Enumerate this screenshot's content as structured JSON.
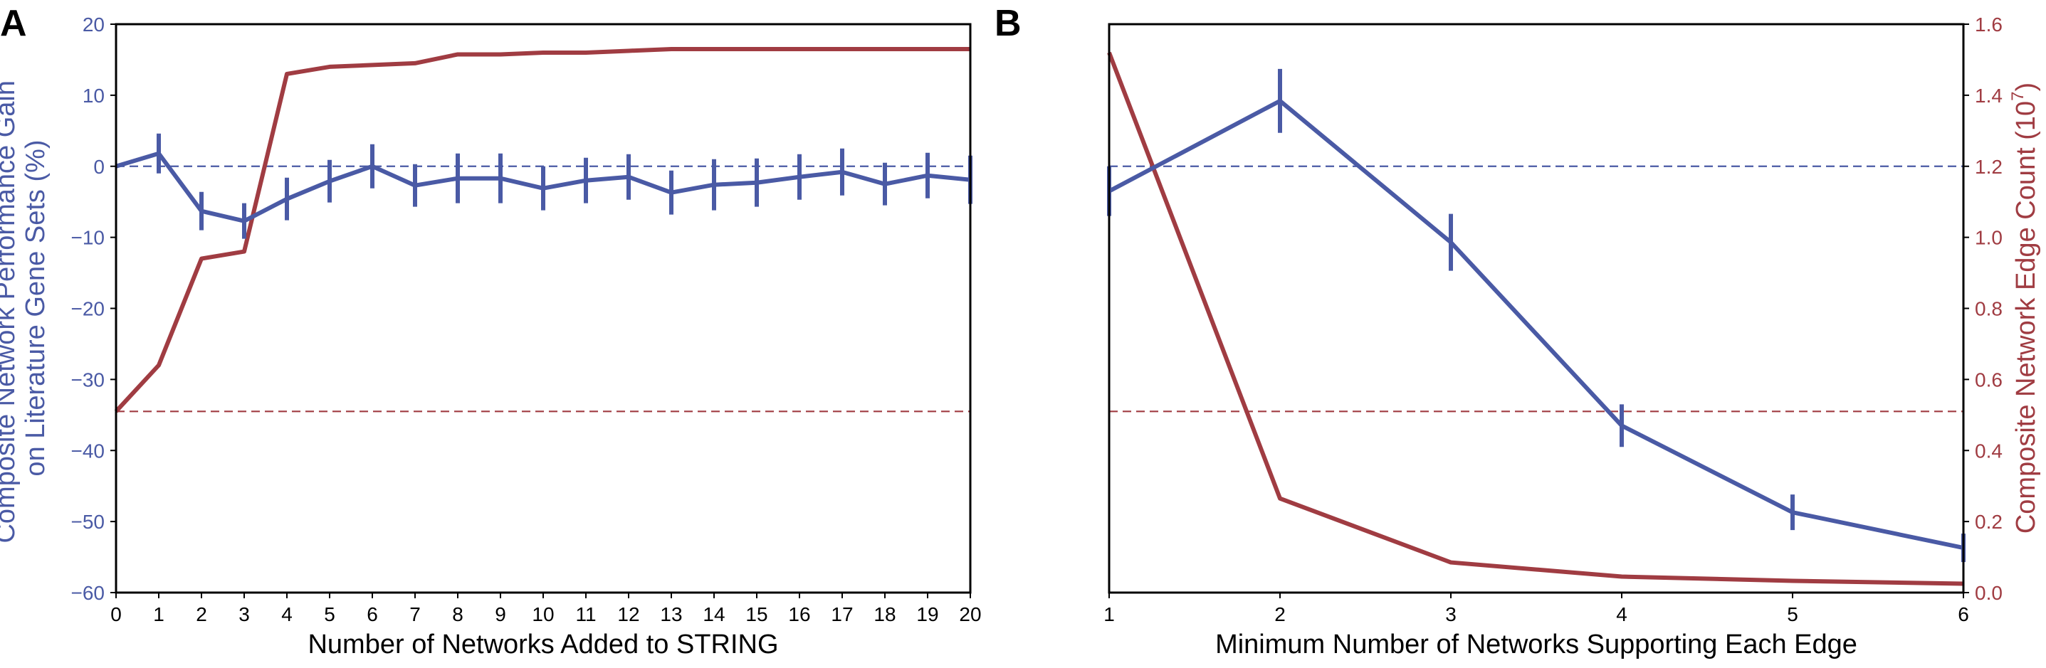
{
  "colors": {
    "blue": "#4a5aa5",
    "red": "#a03c42",
    "axis": "#000000"
  },
  "chart_data": [
    {
      "panel": "A",
      "type": "line",
      "xlabel": "Number of Networks Added to STRING",
      "ylabel_left": [
        "Composite Network Performance Gain",
        "on Literature Gene Sets (%)"
      ],
      "xlim": [
        0,
        20
      ],
      "ylim_left": [
        -60,
        20
      ],
      "ylim_right": [
        0,
        1.6
      ],
      "x_ticks": [
        0,
        1,
        2,
        3,
        4,
        5,
        6,
        7,
        8,
        9,
        10,
        11,
        12,
        13,
        14,
        15,
        16,
        17,
        18,
        19,
        20
      ],
      "x_tick_labels": [
        "0",
        "1",
        "2",
        "3",
        "4",
        "5",
        "6",
        "7",
        "8",
        "9",
        "10",
        "11",
        "12",
        "13",
        "14",
        "15",
        "16",
        "17",
        "18",
        "19",
        "20"
      ],
      "y_ticks_left": [
        -60,
        -50,
        -40,
        -30,
        -20,
        -10,
        0,
        10,
        20
      ],
      "y_tick_labels_left": [
        "−60",
        "−50",
        "−40",
        "−30",
        "−20",
        "−10",
        "0",
        "10",
        "20"
      ],
      "performance": {
        "x": [
          0,
          1,
          2,
          3,
          4,
          5,
          6,
          7,
          8,
          9,
          10,
          11,
          12,
          13,
          14,
          15,
          16,
          17,
          18,
          19,
          20
        ],
        "y": [
          0,
          1.8,
          -6.3,
          -7.7,
          -4.6,
          -2.1,
          0,
          -2.7,
          -1.7,
          -1.7,
          -3.1,
          -2.0,
          -1.5,
          -3.7,
          -2.6,
          -2.3,
          -1.5,
          -0.8,
          -2.5,
          -1.3,
          -1.9
        ],
        "err": [
          0,
          2.8,
          2.7,
          2.5,
          3.0,
          3.0,
          3.1,
          3.0,
          3.5,
          3.5,
          3.1,
          3.2,
          3.2,
          3.1,
          3.6,
          3.4,
          3.2,
          3.3,
          3.0,
          3.2,
          3.4
        ]
      },
      "edge_count": {
        "x": [
          0,
          1,
          2,
          3,
          4,
          5,
          6,
          7,
          8,
          9,
          10,
          11,
          12,
          13,
          14,
          15,
          16,
          17,
          18,
          19,
          20
        ],
        "y": [
          0.51,
          0.64,
          0.94,
          0.96,
          1.46,
          1.48,
          1.485,
          1.49,
          1.515,
          1.515,
          1.52,
          1.52,
          1.525,
          1.53,
          1.53,
          1.53,
          1.53,
          1.53,
          1.53,
          1.53,
          1.53
        ]
      },
      "reference_lines": {
        "performance_zero": 0,
        "edge_baseline": 0.51
      }
    },
    {
      "panel": "B",
      "type": "line",
      "xlabel": "Minimum Number of Networks Supporting Each Edge",
      "ylabel_right": "Composite Network Edge Count (10",
      "ylabel_right_sup": "7",
      "ylabel_right_end": ")",
      "xlim": [
        1,
        6
      ],
      "ylim_left": [
        -60,
        20
      ],
      "ylim_right": [
        0,
        1.6
      ],
      "x_ticks": [
        1,
        2,
        3,
        4,
        5,
        6
      ],
      "x_tick_labels": [
        "1",
        "2",
        "3",
        "4",
        "5",
        "6"
      ],
      "y_ticks_right": [
        0,
        0.2,
        0.4,
        0.6,
        0.8,
        1.0,
        1.2,
        1.4,
        1.6
      ],
      "y_tick_labels_right": [
        "0.0",
        "0.2",
        "0.4",
        "0.6",
        "0.8",
        "1.0",
        "1.2",
        "1.4",
        "1.6"
      ],
      "performance": {
        "x": [
          1,
          2,
          3,
          4,
          5,
          6
        ],
        "y": [
          -3.5,
          9.2,
          -10.7,
          -36.5,
          -48.7,
          -53.7
        ],
        "err": [
          3.5,
          4.5,
          4.0,
          3.0,
          2.5,
          2.0
        ]
      },
      "edge_count": {
        "x": [
          1,
          2,
          3,
          4,
          5,
          6
        ],
        "y": [
          1.52,
          0.265,
          0.085,
          0.045,
          0.033,
          0.025
        ]
      },
      "reference_lines": {
        "performance_zero": 0,
        "edge_baseline": 0.51
      }
    }
  ]
}
